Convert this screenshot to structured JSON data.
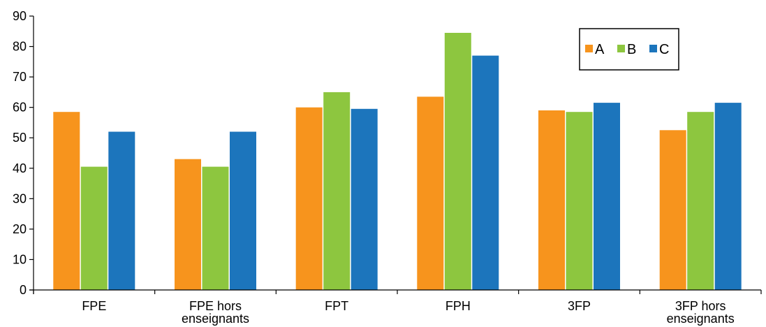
{
  "chart_data": {
    "type": "bar",
    "categories": [
      [
        "FPE"
      ],
      [
        "FPE hors",
        "enseignants"
      ],
      [
        "FPT"
      ],
      [
        "FPH"
      ],
      [
        "3FP"
      ],
      [
        "3FP hors",
        "enseignants"
      ]
    ],
    "series": [
      {
        "name": "A",
        "color": "#F7941D",
        "values": [
          58.5,
          43,
          60,
          63.5,
          59,
          52.5
        ]
      },
      {
        "name": "B",
        "color": "#8DC63F",
        "values": [
          40.5,
          40.5,
          65,
          84.5,
          58.5,
          58.5
        ]
      },
      {
        "name": "C",
        "color": "#1C75BC",
        "values": [
          52,
          52,
          59.5,
          77,
          61.5,
          61.5
        ]
      }
    ],
    "ylim": [
      0,
      90
    ],
    "yticks": [
      0,
      10,
      20,
      30,
      40,
      50,
      60,
      70,
      80,
      90
    ],
    "grid": false,
    "legend": "top-right"
  }
}
